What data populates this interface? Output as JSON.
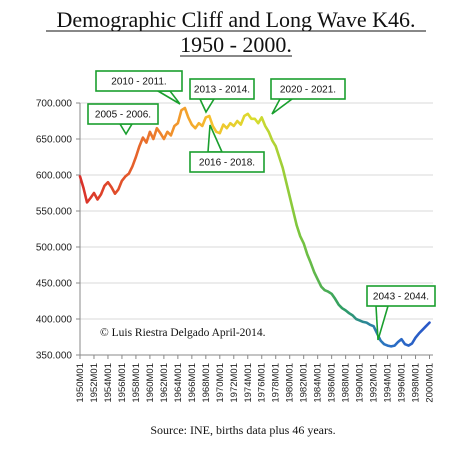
{
  "chart_data": {
    "type": "line",
    "title_line1": "Demographic Cliff and Long Wave K46.",
    "title_line2": "1950 - 2000.",
    "xlabel": "",
    "ylabel": "",
    "x_ticks": [
      "1950M01",
      "1952M01",
      "1954M01",
      "1956M01",
      "1958M01",
      "1960M01",
      "1962M01",
      "1964M01",
      "1966M01",
      "1968M01",
      "1970M01",
      "1972M01",
      "1974M01",
      "1976M01",
      "1978M01",
      "1980M01",
      "1982M01",
      "1984M01",
      "1986M01",
      "1988M01",
      "1990M01",
      "1992M01",
      "1994M01",
      "1996M01",
      "1998M01",
      "2000M01"
    ],
    "y_ticks": [
      "350.000",
      "400.000",
      "450.000",
      "500.000",
      "550.000",
      "600.000",
      "650.000",
      "700.000"
    ],
    "ylim": [
      350000,
      700000
    ],
    "xlim": [
      1950,
      2000.5
    ],
    "grid": "horizontal",
    "x": [
      1950.0,
      1950.5,
      1951.0,
      1951.5,
      1952.0,
      1952.5,
      1953.0,
      1953.5,
      1954.0,
      1954.5,
      1955.0,
      1955.5,
      1956.0,
      1956.5,
      1957.0,
      1957.5,
      1958.0,
      1958.5,
      1959.0,
      1959.5,
      1960.0,
      1960.5,
      1961.0,
      1961.5,
      1962.0,
      1962.5,
      1963.0,
      1963.5,
      1964.0,
      1964.5,
      1965.0,
      1965.5,
      1966.0,
      1966.5,
      1967.0,
      1967.5,
      1968.0,
      1968.5,
      1969.0,
      1969.5,
      1970.0,
      1970.5,
      1971.0,
      1971.5,
      1972.0,
      1972.5,
      1973.0,
      1973.5,
      1974.0,
      1974.5,
      1975.0,
      1975.5,
      1976.0,
      1976.5,
      1977.0,
      1977.5,
      1978.0,
      1978.5,
      1979.0,
      1979.5,
      1980.0,
      1980.5,
      1981.0,
      1981.5,
      1982.0,
      1982.5,
      1983.0,
      1983.5,
      1984.0,
      1984.5,
      1985.0,
      1985.5,
      1986.0,
      1986.5,
      1987.0,
      1987.5,
      1988.0,
      1988.5,
      1989.0,
      1989.5,
      1990.0,
      1990.5,
      1991.0,
      1991.5,
      1992.0,
      1992.5,
      1993.0,
      1993.5,
      1994.0,
      1994.5,
      1995.0,
      1995.5,
      1996.0,
      1996.5,
      1997.0,
      1997.5,
      1998.0,
      1998.5,
      1999.0,
      1999.5,
      2000.0
    ],
    "y": [
      598000,
      582000,
      562000,
      568000,
      575000,
      566000,
      573000,
      585000,
      590000,
      583000,
      574000,
      580000,
      592000,
      598000,
      602000,
      612000,
      625000,
      640000,
      652000,
      645000,
      660000,
      650000,
      665000,
      658000,
      650000,
      660000,
      655000,
      668000,
      672000,
      690000,
      693000,
      680000,
      670000,
      665000,
      672000,
      668000,
      680000,
      682000,
      668000,
      660000,
      658000,
      670000,
      665000,
      672000,
      668000,
      675000,
      670000,
      682000,
      685000,
      678000,
      678000,
      672000,
      680000,
      668000,
      660000,
      648000,
      640000,
      625000,
      610000,
      590000,
      570000,
      550000,
      530000,
      515000,
      505000,
      490000,
      478000,
      465000,
      455000,
      445000,
      440000,
      438000,
      435000,
      428000,
      420000,
      415000,
      412000,
      408000,
      405000,
      400000,
      398000,
      396000,
      395000,
      392000,
      390000,
      380000,
      370000,
      365000,
      363000,
      362000,
      363000,
      368000,
      372000,
      365000,
      363000,
      366000,
      374000,
      380000,
      385000,
      390000,
      395000
    ],
    "annotations": [
      "2005 - 2006.",
      "2010 - 2011.",
      "2013 - 2014.",
      "2016 - 2018.",
      "2020 - 2021.",
      "2043 - 2044."
    ],
    "credit": "© Luis Riestra Delgado April-2014.",
    "source": "Source: INE, births data plus 46 years."
  },
  "colors": {
    "axis": "#888888",
    "gridline": "#d9d9d9",
    "callout_border": "#1a9f2e",
    "line_gradient": [
      "#d9302a",
      "#e2542b",
      "#f08c2c",
      "#f6c12e",
      "#d9dd2e",
      "#7cc63e",
      "#2f9e63",
      "#2a72c4",
      "#2a56c8"
    ]
  }
}
